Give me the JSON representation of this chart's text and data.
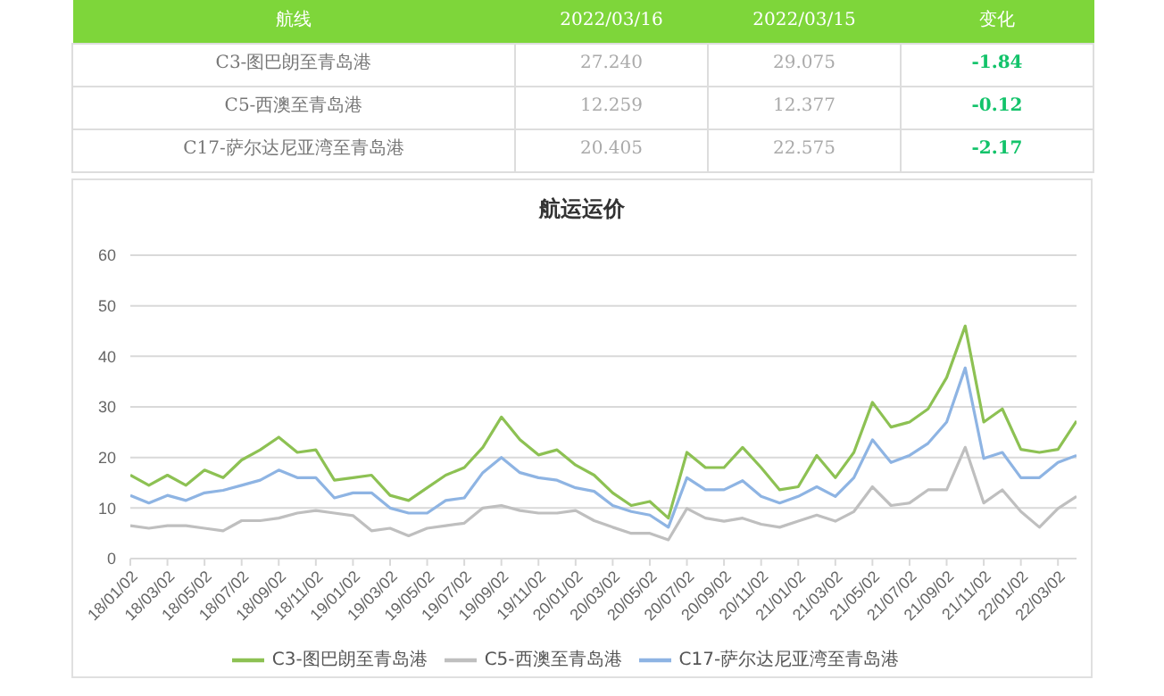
{
  "chart_data": [
    {
      "type": "other",
      "annotations": [
        "航线",
        "2022/03/16",
        "2022/03/15",
        "变化",
        "C3-图巴朗至青岛港",
        "27.240",
        "29.075",
        "-1.84",
        "C5-西澳至青岛港",
        "12.259",
        "12.377",
        "-0.12",
        "C17-萨尔达尼亚湾至青岛港",
        "20.405",
        "22.575",
        "-2.17"
      ]
    },
    {
      "type": "line",
      "title": "航运运价",
      "categories": [
        "18/01/02",
        null,
        "18/03/02",
        null,
        "18/05/02",
        null,
        "18/07/02",
        null,
        "18/09/02",
        null,
        "18/11/02",
        null,
        "19/01/02",
        null,
        "19/03/02",
        null,
        "19/05/02",
        null,
        "19/07/02",
        null,
        "19/09/02",
        null,
        "19/11/02",
        null,
        "20/01/02",
        null,
        "20/03/02",
        null,
        "20/05/02",
        null,
        "20/07/02",
        null,
        "20/09/02",
        null,
        "20/11/02",
        null,
        "21/01/02",
        null,
        "21/03/02",
        null,
        "21/05/02",
        null,
        "21/07/02",
        null,
        "21/09/02",
        null,
        "21/11/02",
        null,
        "22/01/02",
        null,
        "22/03/02",
        null
      ],
      "series": [
        {
          "name": "C3-图巴朗至青岛港",
          "color": "#8dc153",
          "values": [
            16.5,
            14.5,
            16.5,
            14.5,
            17.5,
            16,
            19.5,
            21.5,
            24,
            21,
            21.5,
            15.5,
            16,
            16.5,
            12.5,
            11.5,
            14,
            16.5,
            18,
            22,
            28,
            23.5,
            20.5,
            21.5,
            18.5,
            16.5,
            13,
            10.5,
            11.3,
            8,
            21,
            18,
            18,
            22,
            18,
            13.6,
            14.2,
            20.4,
            16,
            21,
            30.9,
            26,
            27,
            29.6,
            35.8,
            46,
            27,
            29.6,
            21.6,
            21,
            21.6,
            27.2
          ]
        },
        {
          "name": "C5-西澳至青岛港",
          "color": "#bfbfbf",
          "values": [
            6.5,
            6,
            6.5,
            6.5,
            6,
            5.5,
            7.5,
            7.5,
            8,
            9,
            9.5,
            9,
            8.5,
            5.5,
            6,
            4.5,
            6,
            6.5,
            7,
            10,
            10.5,
            9.5,
            9,
            9,
            9.5,
            7.5,
            6.2,
            5,
            5,
            3.7,
            9.9,
            8,
            7.4,
            8,
            6.8,
            6.2,
            7.4,
            8.6,
            7.4,
            9.3,
            14.2,
            10.5,
            11,
            13.6,
            13.6,
            22,
            11,
            13.6,
            9.3,
            6.2,
            9.9,
            12.3
          ]
        },
        {
          "name": "C17-萨尔达尼亚湾至青岛港",
          "color": "#8eb4e3",
          "values": [
            12.5,
            11,
            12.5,
            11.5,
            13,
            13.5,
            14.5,
            15.5,
            17.5,
            16,
            16,
            12,
            13,
            13,
            10,
            9,
            9,
            11.5,
            12,
            17,
            20,
            17,
            16,
            15.5,
            14,
            13.3,
            10.5,
            9.3,
            8.6,
            6.2,
            16,
            13.6,
            13.6,
            15.4,
            12.3,
            11,
            12.3,
            14.2,
            12.3,
            16,
            23.5,
            19,
            20.4,
            22.8,
            27,
            37.7,
            19.8,
            21,
            16,
            16,
            19,
            20.4
          ]
        }
      ],
      "ylim": [
        0,
        60
      ],
      "yticks": [
        0,
        10,
        20,
        30,
        40,
        50,
        60
      ],
      "grid": "y",
      "legend": "bottom",
      "marker": "none",
      "line_style": "solid"
    }
  ]
}
